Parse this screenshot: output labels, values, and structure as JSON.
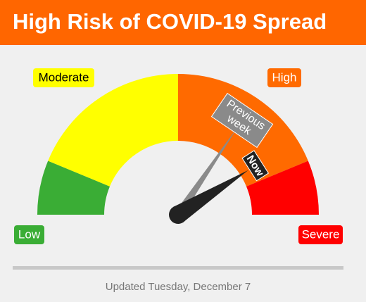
{
  "header": {
    "title": "High Risk of COVID-19 Spread"
  },
  "chart_data": {
    "type": "gauge",
    "range": [
      0,
      100
    ],
    "segments": [
      {
        "name": "Low",
        "color": "#3aad35",
        "from": 0,
        "to": 12.5
      },
      {
        "name": "Moderate",
        "color": "#ffff00",
        "from": 12.5,
        "to": 50
      },
      {
        "name": "High",
        "color": "#ff6a00",
        "from": 50,
        "to": 87.5
      },
      {
        "name": "Severe",
        "color": "#ff0000",
        "from": 87.5,
        "to": 100
      }
    ],
    "needles": [
      {
        "name": "Previous week",
        "color": "#8a8a8a",
        "value": 69
      },
      {
        "name": "Now",
        "color": "#222222",
        "value": 82
      }
    ]
  },
  "footer": {
    "text": "Updated Tuesday, December 7"
  }
}
